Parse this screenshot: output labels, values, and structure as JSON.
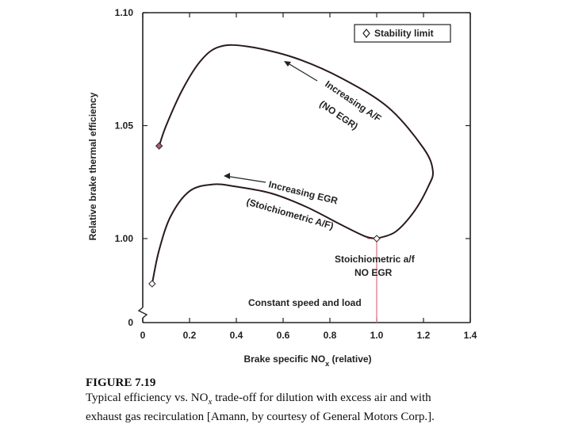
{
  "chart_data": {
    "type": "line",
    "title": "",
    "xlabel": "Brake specific NOx (relative)",
    "xlabel_main": "Brake specific NO",
    "xlabel_sub": "x",
    "xlabel_tail": " (relative)",
    "ylabel": "Relative brake thermal efficiency",
    "xlim": [
      0,
      1.4
    ],
    "ylim": [
      0.96,
      1.1
    ],
    "x_ticks": [
      {
        "value": 0,
        "label": "0"
      },
      {
        "value": 0.2,
        "label": "0.2"
      },
      {
        "value": 0.4,
        "label": "0.4"
      },
      {
        "value": 0.6,
        "label": "0.6"
      },
      {
        "value": 0.8,
        "label": "0.8"
      },
      {
        "value": 1.0,
        "label": "1.0"
      },
      {
        "value": 1.2,
        "label": "1.2"
      },
      {
        "value": 1.4,
        "label": "1.4"
      }
    ],
    "y_ticks": [
      {
        "value": 1.0,
        "label": "1.00"
      },
      {
        "value": 1.05,
        "label": "1.05"
      },
      {
        "value": 1.1,
        "label": "1.10"
      }
    ],
    "y_origin_label": "0",
    "grid": false,
    "legend": {
      "position": "top-right",
      "entries": [
        "Stability limit"
      ]
    },
    "series": [
      {
        "label": "Increasing A/F (NO EGR)",
        "x": [
          1.0,
          1.08,
          1.16,
          1.22,
          1.24,
          1.2,
          1.05,
          0.85,
          0.65,
          0.45,
          0.33,
          0.25,
          0.17,
          0.1,
          0.07
        ],
        "y": [
          1.0,
          1.003,
          1.012,
          1.023,
          1.03,
          1.04,
          1.058,
          1.071,
          1.08,
          1.085,
          1.085,
          1.079,
          1.066,
          1.05,
          1.041
        ]
      },
      {
        "label": "Increasing EGR (Stoichiometric A/F)",
        "x": [
          1.0,
          0.95,
          0.85,
          0.7,
          0.55,
          0.4,
          0.3,
          0.2,
          0.12,
          0.07,
          0.04
        ],
        "y": [
          1.0,
          1.001,
          1.006,
          1.014,
          1.02,
          1.023,
          1.024,
          1.021,
          1.01,
          0.995,
          0.98
        ]
      }
    ],
    "stability_limit_points": [
      {
        "x": 0.07,
        "y": 1.041
      },
      {
        "x": 0.04,
        "y": 0.98
      },
      {
        "x": 1.0,
        "y": 1.0
      }
    ],
    "annotations": {
      "af_line1": "Increasing A/F",
      "af_line2": "(NO EGR)",
      "egr_line1": "Increasing EGR",
      "egr_line2": "(Stoichiometric A/F)",
      "stoich_line1": "Stoichiometric a/f",
      "stoich_line2": "NO EGR",
      "constant": "Constant speed and load"
    },
    "colors": {
      "curve": "#2a1a1a",
      "marker_fill": "#b55a6a",
      "guide_line": "#e07a8a",
      "axis": "#222222"
    }
  },
  "caption": {
    "figure": "FIGURE 7.19",
    "text_pre": "Typical efficiency vs. NO",
    "text_sub": "x",
    "text_post": " trade-off for dilution with excess air and with",
    "text_line2": "exhaust gas recirculation [Amann, by courtesy of General Motors Corp.]."
  }
}
